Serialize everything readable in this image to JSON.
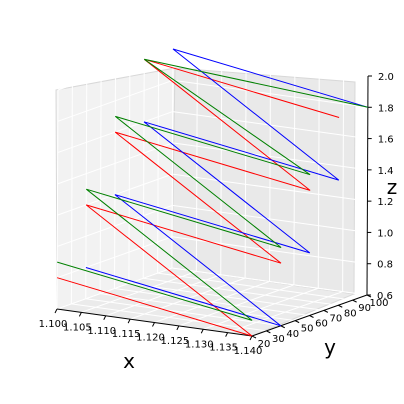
{
  "chart_data": {
    "type": "line",
    "projection": "3d",
    "title": "",
    "xlabel": "x",
    "ylabel": "y",
    "zlabel": "z",
    "xlim": [
      1.1,
      1.14
    ],
    "ylim": [
      20,
      100
    ],
    "zlim": [
      0.6,
      2.0
    ],
    "xticks": [
      "1.100",
      "1.105",
      "1.110",
      "1.115",
      "1.120",
      "1.125",
      "1.130",
      "1.135",
      "1.140"
    ],
    "yticks": [
      "20",
      "30",
      "40",
      "50",
      "60",
      "70",
      "80",
      "90",
      "100"
    ],
    "zticks": [
      "0.6",
      "0.8",
      "1.0",
      "1.2",
      "1.4",
      "1.6",
      "1.8",
      "2.0"
    ],
    "grid": true,
    "series": [
      {
        "color": "#ff0000",
        "points": [
          [
            1.1,
            20,
            0.8
          ],
          [
            1.14,
            20,
            0.6
          ],
          [
            1.1,
            40,
            1.2
          ],
          [
            1.14,
            40,
            1.0
          ],
          [
            1.1,
            60,
            1.6
          ],
          [
            1.14,
            60,
            1.4
          ],
          [
            1.1,
            80,
            2.0
          ],
          [
            1.14,
            80,
            1.8
          ]
        ]
      },
      {
        "color": "#0000ff",
        "points": [
          [
            1.1,
            40,
            0.8
          ],
          [
            1.14,
            40,
            0.6
          ],
          [
            1.1,
            60,
            1.2
          ],
          [
            1.14,
            60,
            1.0
          ],
          [
            1.1,
            80,
            1.6
          ],
          [
            1.14,
            80,
            1.4
          ],
          [
            1.1,
            100,
            2.0
          ],
          [
            1.14,
            100,
            1.8
          ]
        ]
      },
      {
        "color": "#008000",
        "points": [
          [
            1.1,
            20,
            0.9
          ],
          [
            1.14,
            20,
            0.7
          ],
          [
            1.1,
            40,
            1.3
          ],
          [
            1.14,
            40,
            1.1
          ],
          [
            1.1,
            60,
            1.7
          ],
          [
            1.14,
            60,
            1.5
          ],
          [
            1.1,
            80,
            2.0
          ],
          [
            1.14,
            100,
            1.8
          ]
        ]
      }
    ]
  }
}
